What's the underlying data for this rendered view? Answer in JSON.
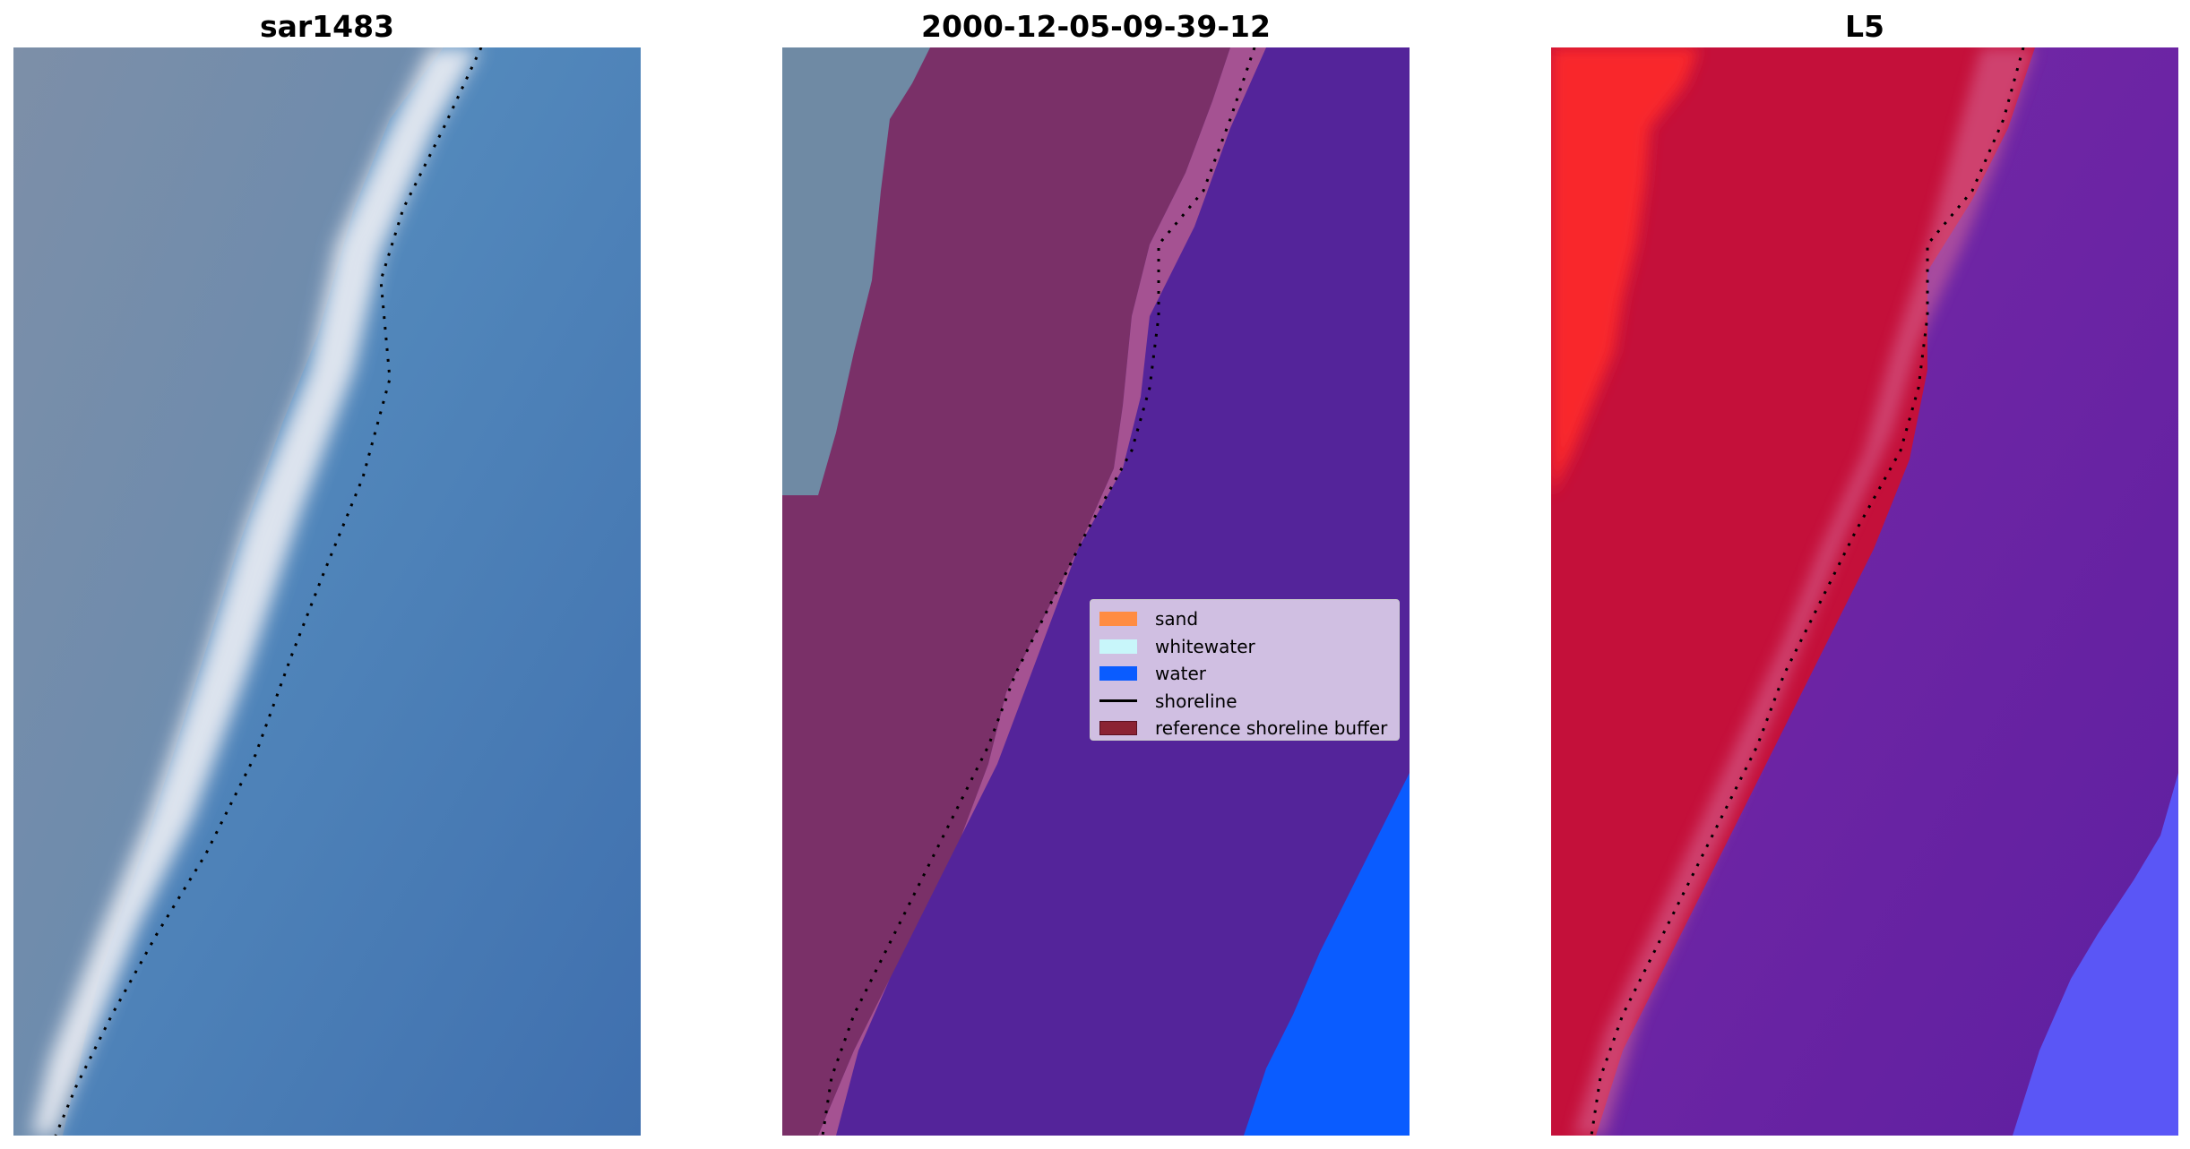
{
  "panels": [
    {
      "title": "sar1483"
    },
    {
      "title": "2000-12-05-09-39-12"
    },
    {
      "title": "L5"
    }
  ],
  "legend": {
    "items": [
      {
        "label": "sand",
        "color": "#ff8c42",
        "kind": "patch"
      },
      {
        "label": "whitewater",
        "color": "#c8f6fa",
        "kind": "patch"
      },
      {
        "label": "water",
        "color": "#0a5cff",
        "kind": "patch"
      },
      {
        "label": "shoreline",
        "color": "#000000",
        "kind": "line"
      },
      {
        "label": "reference shoreline buffer",
        "color": "#8b2333",
        "kind": "patch"
      }
    ]
  },
  "colors": {
    "rgb_land": "#6f86a0",
    "rgb_water": "#4a8cc2",
    "rgb_whitewater": "#e9ecf3",
    "class_land": "#6f8aa4",
    "class_buffer": "#7a3068",
    "class_buffer_edge": "#c0628f",
    "class_water": "#54249a",
    "class_water_bright": "#0a5cff",
    "mndwi_land": "#c4103a",
    "mndwi_land_bright": "#ff2a2a",
    "mndwi_water": "#6a22a8",
    "mndwi_water_bright": "#5a5cff"
  }
}
